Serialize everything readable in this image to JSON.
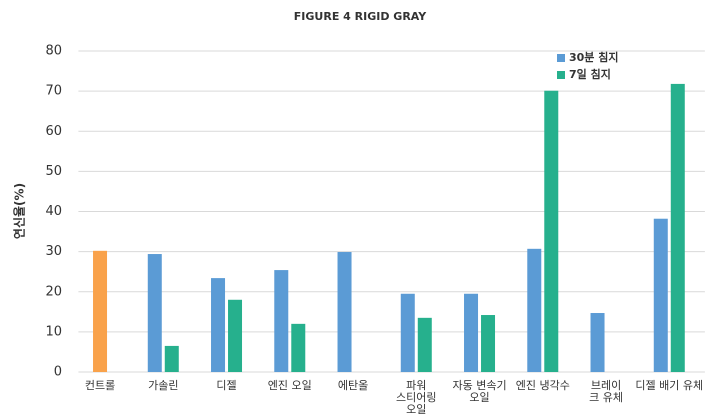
{
  "chart_data": {
    "type": "bar",
    "title": "FIGURE 4 RIGID GRAY",
    "y_label": "연신율(%)",
    "categories": [
      "컨트롤",
      "가솔린",
      "디젤",
      "엔진 오일",
      "에탄올",
      "파워\n스티어링\n오일",
      "자동 변속기\n오일",
      "엔진 냉각수",
      "브레이\n크 유체",
      "디젤 배기 유체"
    ],
    "series": [
      {
        "name": "30분 침지",
        "color": "#5b9bd5",
        "point_colors": {
          "0": "#f9a24b"
        },
        "values": [
          30.2,
          29.4,
          23.4,
          25.4,
          29.9,
          19.5,
          19.5,
          30.7,
          14.7,
          38.2
        ]
      },
      {
        "name": "7일 침지",
        "color": "#26b08d",
        "values": [
          null,
          6.5,
          18.0,
          12.0,
          null,
          13.5,
          14.2,
          70.1,
          null,
          71.8
        ]
      }
    ],
    "ylim": [
      0,
      80
    ],
    "yticks": [
      0,
      10,
      20,
      30,
      40,
      50,
      60,
      70,
      80
    ],
    "grid": true,
    "legend": "top-right"
  }
}
